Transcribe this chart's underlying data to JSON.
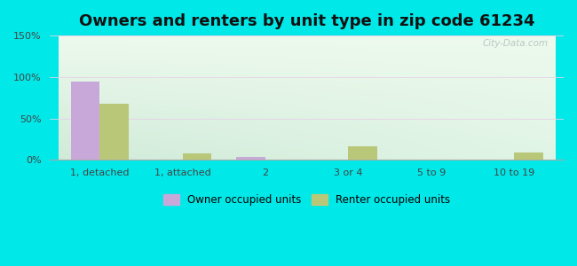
{
  "title": "Owners and renters by unit type in zip code 61234",
  "categories": [
    "1, detached",
    "1, attached",
    "2",
    "3 or 4",
    "5 to 9",
    "10 to 19"
  ],
  "owner_values": [
    95,
    0,
    4,
    0,
    0,
    0
  ],
  "renter_values": [
    68,
    8,
    0,
    16,
    0,
    9
  ],
  "owner_color": "#c8a8d8",
  "renter_color": "#b8c878",
  "outer_bg": "#00e8e8",
  "ylim": [
    0,
    150
  ],
  "yticks": [
    0,
    50,
    100,
    150
  ],
  "ytick_labels": [
    "0%",
    "50%",
    "100%",
    "150%"
  ],
  "bar_width": 0.35,
  "legend_owner": "Owner occupied units",
  "legend_renter": "Renter occupied units",
  "title_fontsize": 13,
  "watermark": "City-Data.com"
}
